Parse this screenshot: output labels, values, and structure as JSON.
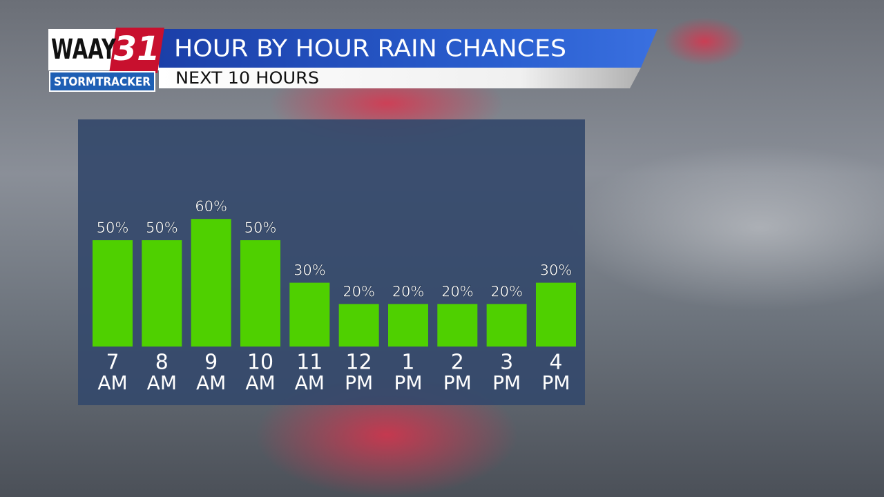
{
  "brand": {
    "name": "WAAY",
    "number": "31",
    "tagline": "STORMTRACKER"
  },
  "chart_data": {
    "type": "bar",
    "title": "HOUR BY HOUR RAIN CHANCES",
    "subtitle": "NEXT 10 HOURS",
    "categories": [
      [
        "7",
        "AM"
      ],
      [
        "8",
        "AM"
      ],
      [
        "9",
        "AM"
      ],
      [
        "10",
        "AM"
      ],
      [
        "11",
        "AM"
      ],
      [
        "12",
        "PM"
      ],
      [
        "1",
        "PM"
      ],
      [
        "2",
        "PM"
      ],
      [
        "3",
        "PM"
      ],
      [
        "4",
        "PM"
      ]
    ],
    "values": [
      50,
      50,
      60,
      50,
      30,
      20,
      20,
      20,
      20,
      30
    ],
    "value_labels": [
      "50%",
      "50%",
      "60%",
      "50%",
      "30%",
      "20%",
      "20%",
      "20%",
      "20%",
      "30%"
    ],
    "color": "#4fd000"
  }
}
